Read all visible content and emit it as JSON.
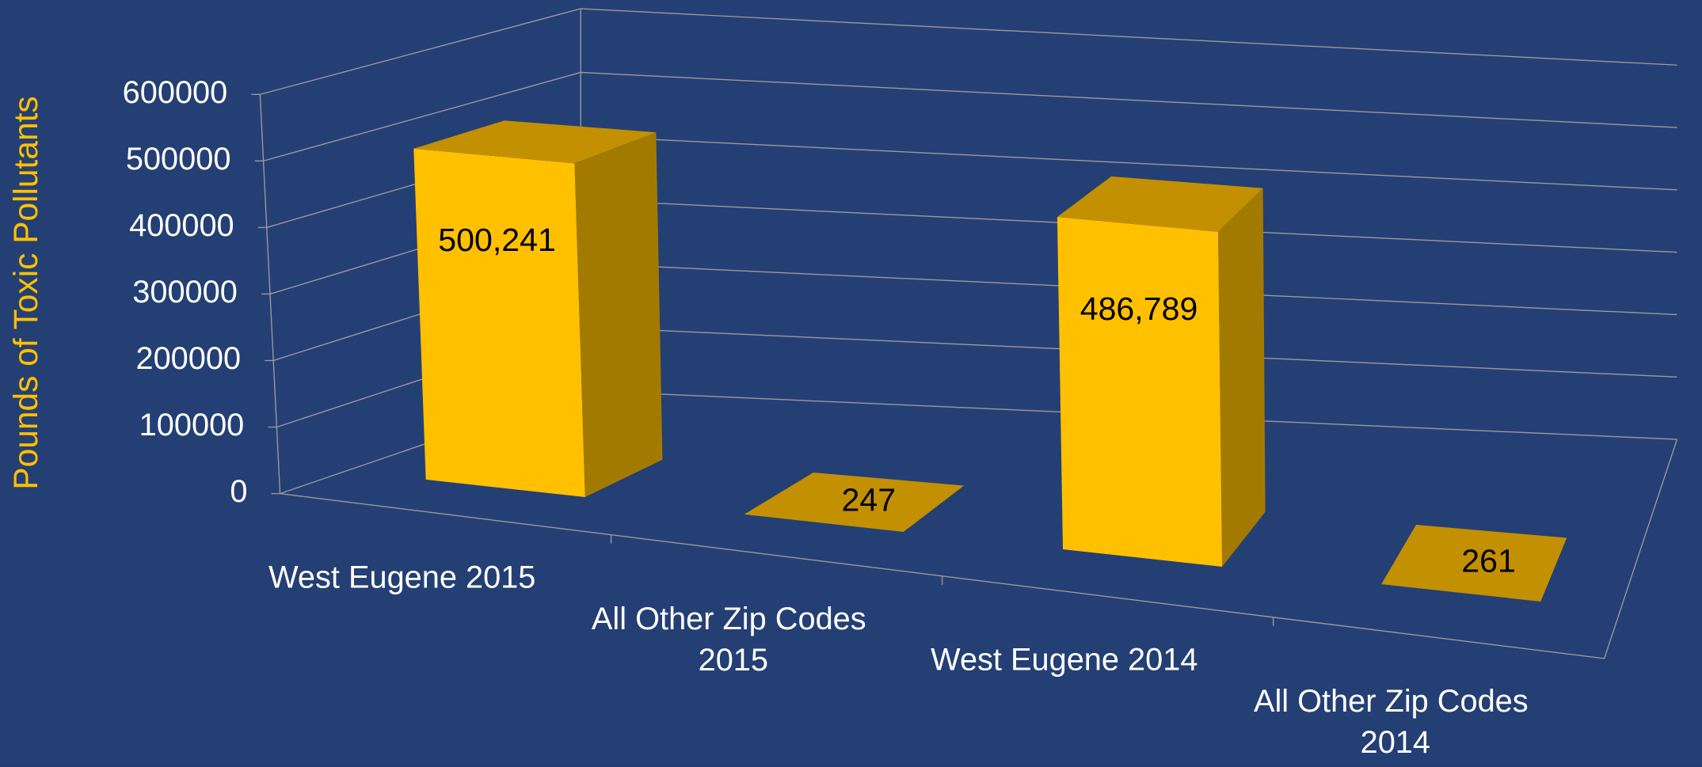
{
  "chart_data": {
    "type": "bar3d",
    "y_axis_label": "Pounds of Toxic Pollutants",
    "categories": [
      "West Eugene 2015",
      "All Other Zip Codes 2015",
      "West Eugene 2014",
      "All Other Zip Codes 2014"
    ],
    "values": [
      500241,
      247,
      486789,
      261
    ],
    "value_labels": [
      "500,241",
      "247",
      "486,789",
      "261"
    ],
    "color": "#ffc000",
    "ylim": [
      0,
      600000
    ],
    "yticks": [
      0,
      100000,
      200000,
      300000,
      400000,
      500000,
      600000
    ],
    "grid": true
  }
}
